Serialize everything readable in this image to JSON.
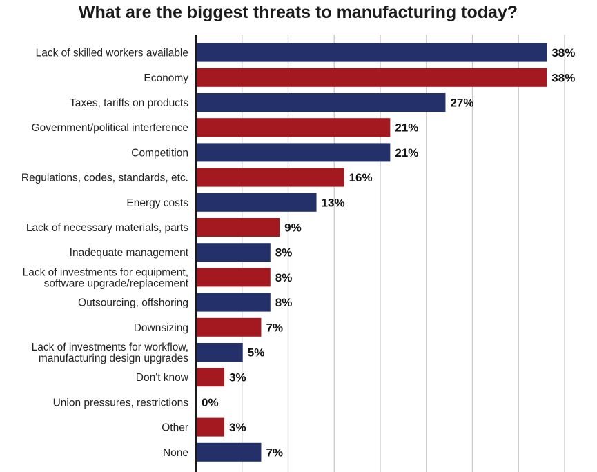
{
  "chart_data": {
    "type": "bar",
    "orientation": "horizontal",
    "title": "What are the biggest threats to manufacturing today?",
    "xlabel": "",
    "ylabel": "",
    "xlim": [
      0,
      40
    ],
    "grid": true,
    "value_suffix": "%",
    "colors": {
      "navy": "#24306a",
      "red": "#a3191f",
      "grid": "#c8c8c8",
      "axis": "#1a1a1a"
    },
    "categories": [
      [
        "Lack of skilled workers available"
      ],
      [
        "Economy"
      ],
      [
        "Taxes, tariffs on products"
      ],
      [
        "Government/political interference"
      ],
      [
        "Competition"
      ],
      [
        "Regulations, codes, standards, etc."
      ],
      [
        "Energy costs"
      ],
      [
        "Lack of necessary materials, parts"
      ],
      [
        "Inadequate management"
      ],
      [
        "Lack of investments for equipment,",
        "software upgrade/replacement"
      ],
      [
        "Outsourcing, offshoring"
      ],
      [
        "Downsizing"
      ],
      [
        "Lack of investments for workflow,",
        "manufacturing design upgrades"
      ],
      [
        "Don't know"
      ],
      [
        "Union pressures, restrictions"
      ],
      [
        "Other"
      ],
      [
        "None"
      ]
    ],
    "values": [
      38,
      38,
      27,
      21,
      21,
      16,
      13,
      9,
      8,
      8,
      8,
      7,
      5,
      3,
      0,
      3,
      7
    ],
    "bar_colors": [
      "navy",
      "red",
      "navy",
      "red",
      "navy",
      "red",
      "navy",
      "red",
      "navy",
      "red",
      "navy",
      "red",
      "navy",
      "red",
      "navy",
      "red",
      "navy"
    ]
  }
}
